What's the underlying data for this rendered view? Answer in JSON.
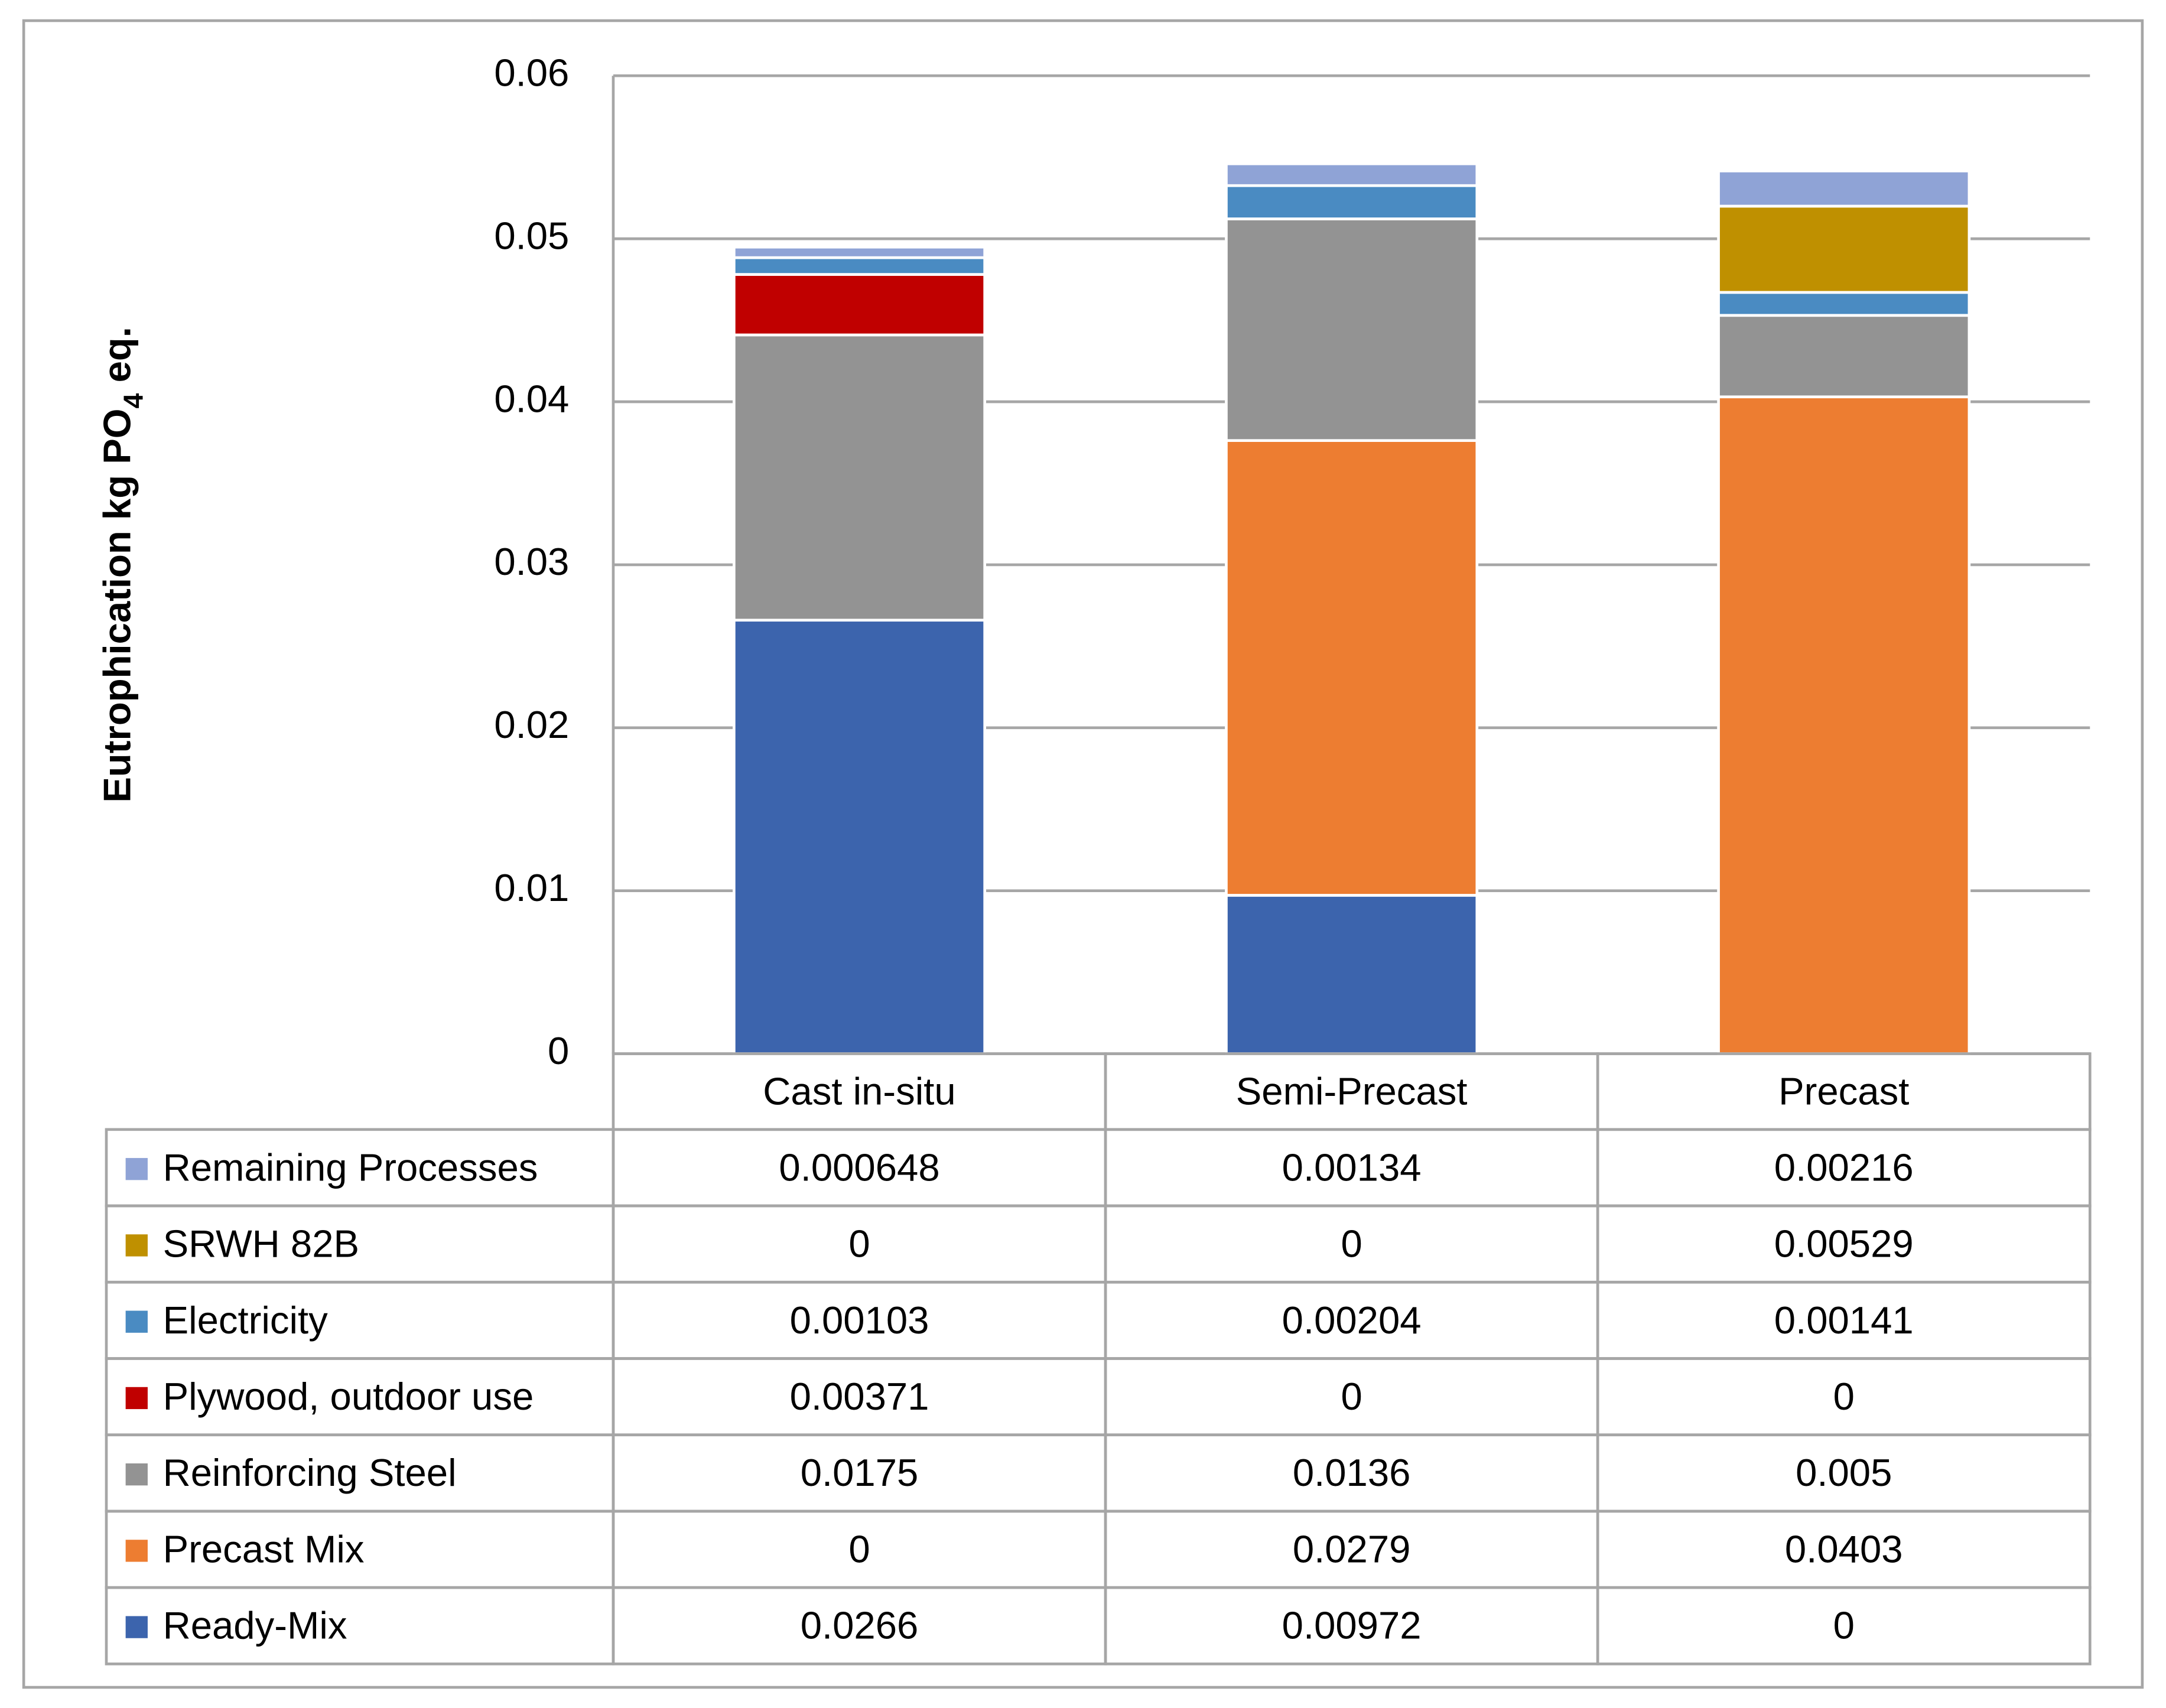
{
  "chart_data": {
    "type": "stacked_bar",
    "y_label_parts": [
      "Eutrophication  kg PO",
      "4",
      " eq."
    ],
    "categories": [
      "Cast in-situ",
      "Semi-Precast",
      "Precast"
    ],
    "series": [
      {
        "name": "Ready-Mix",
        "color": "#3c64ad",
        "values": [
          0.0266,
          0.00972,
          0
        ]
      },
      {
        "name": "Precast Mix",
        "color": "#ed7d31",
        "values": [
          0,
          0.0279,
          0.0403
        ]
      },
      {
        "name": "Reinforcing Steel",
        "color": "#939393",
        "values": [
          0.0175,
          0.0136,
          0.005
        ]
      },
      {
        "name": "Plywood, outdoor use",
        "color": "#c00000",
        "values": [
          0.00371,
          0,
          0
        ]
      },
      {
        "name": "Electricity",
        "color": "#4a8bc2",
        "values": [
          0.00103,
          0.00204,
          0.00141
        ]
      },
      {
        "name": "SRWH 82B",
        "color": "#bf9000",
        "values": [
          0,
          0,
          0.00529
        ]
      },
      {
        "name": "Remaining Processes",
        "color": "#8fa3d6",
        "values": [
          0.000648,
          0.00134,
          0.00216
        ]
      }
    ],
    "ylim": [
      0,
      0.06
    ],
    "yticks": [
      0,
      0.01,
      0.02,
      0.03,
      0.04,
      0.05,
      0.06
    ],
    "grid": true,
    "data_table": true
  }
}
